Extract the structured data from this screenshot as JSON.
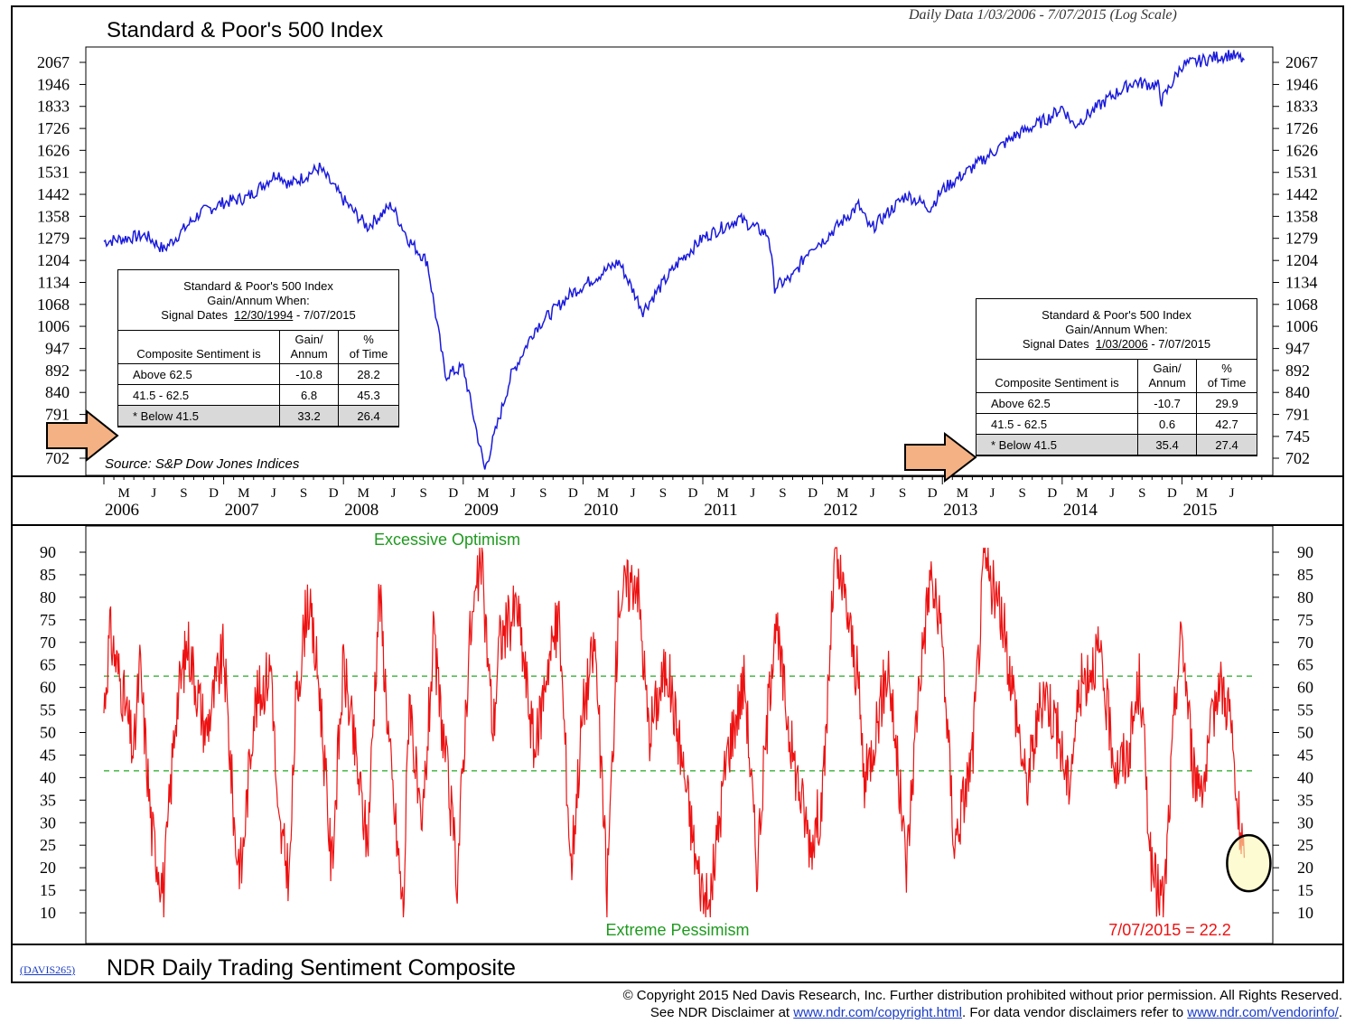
{
  "header": {
    "title": "Standard & Poor's 500 Index",
    "subtitle": "Daily Data 1/03/2006 - 7/07/2015 (Log Scale)"
  },
  "source": "Source: S&P Dow Jones Indices",
  "table_left": {
    "title_line1": "Standard & Poor's 500 Index",
    "title_line2": "Gain/Annum When:",
    "dates_prefix": "Signal Dates",
    "date_start": "12/30/1994",
    "date_end": "- 7/07/2015",
    "col1": "Composite Sentiment is",
    "col2a": "Gain/",
    "col2b": "Annum",
    "col3a": "%",
    "col3b": "of Time",
    "rows": [
      {
        "label": "Above 62.5",
        "gain": "-10.8",
        "pct": "28.2"
      },
      {
        "label": "41.5 - 62.5",
        "gain": "6.8",
        "pct": "45.3"
      },
      {
        "label": "Below 41.5",
        "gain": "33.2",
        "pct": "26.4"
      }
    ]
  },
  "table_right": {
    "title_line1": "Standard & Poor's 500 Index",
    "title_line2": "Gain/Annum When:",
    "dates_prefix": "Signal Dates",
    "date_start": "1/03/2006",
    "date_end": "- 7/07/2015",
    "col1": "Composite Sentiment is",
    "col2a": "Gain/",
    "col2b": "Annum",
    "col3a": "%",
    "col3b": "of Time",
    "rows": [
      {
        "label": "Above 62.5",
        "gain": "-10.7",
        "pct": "29.9"
      },
      {
        "label": "41.5 - 62.5",
        "gain": "0.6",
        "pct": "42.7"
      },
      {
        "label": "Below 41.5",
        "gain": "35.4",
        "pct": "27.4"
      }
    ]
  },
  "bottom": {
    "code": "(DAVIS265)",
    "title": "NDR Daily Trading Sentiment Composite",
    "optimism_label": "Excessive Optimism",
    "pessimism_label": "Extreme Pessimism",
    "last_value": "7/07/2015 = 22.2"
  },
  "copyright": {
    "line1": "© Copyright 2015 Ned Davis Research, Inc.  Further distribution prohibited without prior permission.  All Rights Reserved.",
    "line2a": "See NDR Disclaimer at ",
    "link1": "www.ndr.com/copyright.html",
    "line2b": ". For data vendor disclaimers refer to ",
    "link2": "www.ndr.com/vendorinfo/",
    "line2c": "."
  },
  "colors": {
    "sp500": "#1a1adc",
    "sentiment": "#ee1111",
    "thresholds": "#22aa22",
    "arrow": "#f4b183"
  },
  "chart_data": [
    {
      "type": "line",
      "title": "Standard & Poor's 500 Index",
      "scale": "log",
      "y_ticks": [
        "2067",
        "1946",
        "1833",
        "1726",
        "1626",
        "1531",
        "1442",
        "1358",
        "1279",
        "1204",
        "1134",
        "1068",
        "1006",
        "947",
        "892",
        "840",
        "791",
        "745",
        "702"
      ],
      "ylim": [
        702,
        2067
      ],
      "x_years": [
        "2006",
        "2007",
        "2008",
        "2009",
        "2010",
        "2011",
        "2012",
        "2013",
        "2014",
        "2015"
      ],
      "x_months": [
        "M",
        "J",
        "S",
        "D"
      ],
      "series": [
        {
          "name": "S&P 500",
          "x": [
            2006.0,
            2006.35,
            2006.5,
            2006.8,
            2007.0,
            2007.2,
            2007.45,
            2007.55,
            2007.8,
            2008.0,
            2008.2,
            2008.4,
            2008.55,
            2008.7,
            2008.85,
            2009.0,
            2009.18,
            2009.4,
            2009.6,
            2009.9,
            2010.3,
            2010.5,
            2010.8,
            2011.0,
            2011.3,
            2011.55,
            2011.6,
            2011.75,
            2011.9,
            2012.0,
            2012.3,
            2012.4,
            2012.7,
            2012.9,
            2013.0,
            2013.3,
            2013.6,
            2013.9,
            2014.0,
            2014.1,
            2014.4,
            2014.6,
            2014.8,
            2014.83,
            2015.0,
            2015.3,
            2015.4,
            2015.52
          ],
          "y": [
            1268,
            1290,
            1240,
            1370,
            1410,
            1430,
            1530,
            1480,
            1550,
            1420,
            1320,
            1400,
            1270,
            1200,
            880,
            900,
            680,
            880,
            1000,
            1100,
            1200,
            1050,
            1200,
            1280,
            1350,
            1290,
            1120,
            1150,
            1250,
            1270,
            1400,
            1310,
            1440,
            1390,
            1460,
            1570,
            1690,
            1780,
            1830,
            1740,
            1880,
            1960,
            1940,
            1860,
            2050,
            2100,
            2110,
            2080
          ]
        }
      ]
    },
    {
      "type": "line",
      "title": "NDR Daily Trading Sentiment Composite",
      "y_ticks": [
        90,
        85,
        80,
        75,
        70,
        65,
        60,
        55,
        50,
        45,
        40,
        35,
        30,
        25,
        20,
        15,
        10
      ],
      "ylim": [
        7,
        92
      ],
      "thresholds": [
        62.5,
        41.5
      ],
      "series": [
        {
          "name": "Sentiment",
          "x": [
            2006.0,
            2006.05,
            2006.15,
            2006.25,
            2006.3,
            2006.4,
            2006.5,
            2006.6,
            2006.7,
            2006.85,
            2007.0,
            2007.1,
            2007.15,
            2007.25,
            2007.4,
            2007.45,
            2007.55,
            2007.6,
            2007.7,
            2007.8,
            2007.9,
            2008.0,
            2008.1,
            2008.2,
            2008.3,
            2008.4,
            2008.5,
            2008.55,
            2008.65,
            2008.75,
            2008.85,
            2008.95,
            2009.05,
            2009.15,
            2009.25,
            2009.3,
            2009.45,
            2009.6,
            2009.7,
            2009.8,
            2009.9,
            2010.0,
            2010.1,
            2010.2,
            2010.3,
            2010.45,
            2010.55,
            2010.7,
            2010.85,
            2010.95,
            2011.05,
            2011.2,
            2011.35,
            2011.45,
            2011.6,
            2011.75,
            2011.9,
            2012.0,
            2012.1,
            2012.2,
            2012.3,
            2012.35,
            2012.45,
            2012.55,
            2012.7,
            2012.8,
            2012.9,
            2013.0,
            2013.1,
            2013.25,
            2013.35,
            2013.5,
            2013.6,
            2013.7,
            2013.85,
            2013.95,
            2014.05,
            2014.15,
            2014.3,
            2014.45,
            2014.55,
            2014.65,
            2014.75,
            2014.85,
            2014.95,
            2015.0,
            2015.1,
            2015.2,
            2015.3,
            2015.4,
            2015.45,
            2015.52
          ],
          "y": [
            55,
            72,
            60,
            45,
            65,
            28,
            15,
            55,
            70,
            50,
            68,
            25,
            20,
            55,
            65,
            30,
            18,
            55,
            80,
            60,
            20,
            65,
            45,
            25,
            82,
            40,
            10,
            60,
            25,
            70,
            45,
            18,
            70,
            88,
            50,
            70,
            78,
            45,
            65,
            75,
            20,
            55,
            70,
            15,
            80,
            85,
            50,
            65,
            40,
            20,
            10,
            45,
            62,
            20,
            75,
            45,
            25,
            35,
            88,
            78,
            60,
            38,
            52,
            65,
            20,
            60,
            85,
            70,
            25,
            45,
            88,
            75,
            58,
            38,
            60,
            52,
            38,
            60,
            68,
            42,
            45,
            62,
            18,
            12,
            60,
            72,
            40,
            40,
            62,
            55,
            35,
            22.2
          ]
        }
      ]
    }
  ]
}
